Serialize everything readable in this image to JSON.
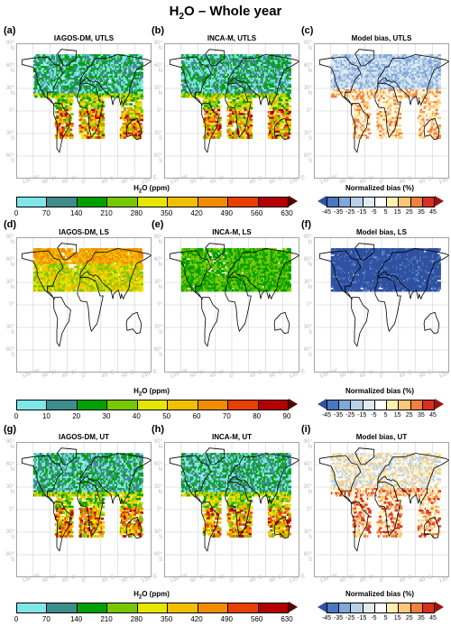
{
  "figure": {
    "title_main": "H",
    "title_sub": "2",
    "title_rest": "O – Whole year"
  },
  "panels": [
    {
      "letter": "(a)",
      "title": "IAGOS-DM, UTLS",
      "kind": "h2o",
      "pattern": "utls"
    },
    {
      "letter": "(b)",
      "title": "INCA-M, UTLS",
      "kind": "h2o",
      "pattern": "utls"
    },
    {
      "letter": "(c)",
      "title": "Model bias, UTLS",
      "kind": "bias",
      "pattern": "bias_utls"
    },
    {
      "letter": "(d)",
      "title": "IAGOS-DM, LS",
      "kind": "h2o_ls",
      "pattern": "ls_obs"
    },
    {
      "letter": "(e)",
      "title": "INCA-M, LS",
      "kind": "h2o_ls",
      "pattern": "ls_model"
    },
    {
      "letter": "(f)",
      "title": "Model bias, LS",
      "kind": "bias",
      "pattern": "bias_ls"
    },
    {
      "letter": "(g)",
      "title": "IAGOS-DM, UT",
      "kind": "h2o",
      "pattern": "ut"
    },
    {
      "letter": "(h)",
      "title": "INCA-M, UT",
      "kind": "h2o",
      "pattern": "ut"
    },
    {
      "letter": "(i)",
      "title": "Model bias, UT",
      "kind": "bias",
      "pattern": "bias_ut"
    }
  ],
  "map_axes": {
    "lat_labels": [
      "90° N",
      "60° N",
      "30° N",
      "0°",
      "30° S",
      "60° S"
    ],
    "lon_labels": [
      "135° W",
      "90° W",
      "45° W",
      "0°",
      "45° E",
      "90° E",
      "135° E"
    ]
  },
  "colorbars": {
    "h2o_utls": {
      "title_pre": "H",
      "title_sub": "2",
      "title_post": "O (ppm)",
      "ticks": [
        "0",
        "70",
        "140",
        "210",
        "280",
        "350",
        "420",
        "490",
        "560",
        "630"
      ],
      "colors": [
        "#7fe7e7",
        "#3f8c8c",
        "#00a000",
        "#78c800",
        "#e6e600",
        "#f0c000",
        "#f08c00",
        "#e84000",
        "#b40000",
        "#5a0000"
      ]
    },
    "h2o_ls": {
      "title_pre": "H",
      "title_sub": "2",
      "title_post": "O (ppm)",
      "ticks": [
        "0",
        "10",
        "20",
        "30",
        "40",
        "50",
        "60",
        "70",
        "80",
        "90"
      ],
      "colors": [
        "#7fe7e7",
        "#3f8c8c",
        "#00a000",
        "#78c800",
        "#e6e600",
        "#f0c000",
        "#f08c00",
        "#e84000",
        "#b40000",
        "#5a0000"
      ]
    },
    "bias": {
      "title": "Normalized bias (%)",
      "ticks": [
        "-45",
        "-35",
        "-25",
        "-15",
        "-5",
        "5",
        "15",
        "25",
        "35",
        "45"
      ],
      "colors": [
        "#3050a0",
        "#4a78c0",
        "#80a8d8",
        "#b8d0e8",
        "#e0ecf4",
        "#ffffff",
        "#fff0b0",
        "#fcc878",
        "#f08040",
        "#d83020",
        "#a01010"
      ]
    }
  }
}
